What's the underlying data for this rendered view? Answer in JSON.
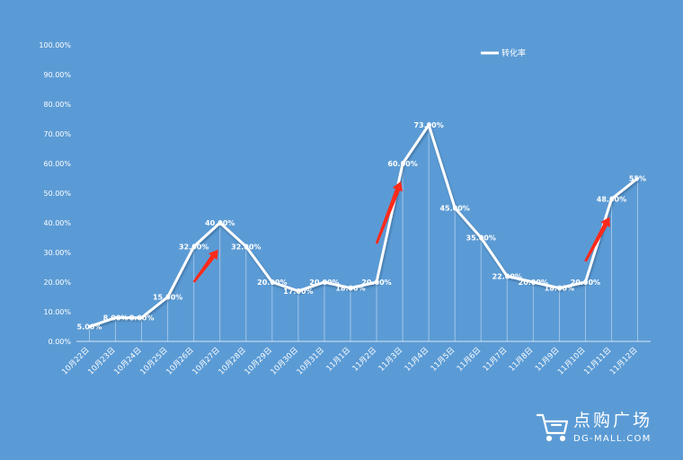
{
  "chart_data": {
    "type": "line",
    "categories": [
      "10月22日",
      "10月23日",
      "10月24日",
      "10月25日",
      "10月26日",
      "10月27日",
      "10月28日",
      "10月29日",
      "10月30日",
      "10月31日",
      "11月1日",
      "11月2日",
      "11月3日",
      "11月4日",
      "11月5日",
      "11月6日",
      "11月7日",
      "11月8日",
      "11月9日",
      "11月10日",
      "11月11日",
      "11月12日"
    ],
    "series": [
      {
        "name": "转化率",
        "values": [
          5,
          8,
          8,
          15,
          32,
          40,
          32,
          20,
          17,
          20,
          18,
          20,
          60,
          73,
          45,
          35,
          22,
          20,
          18,
          20,
          48,
          55
        ],
        "labels": [
          "5.00%",
          "8.00%",
          "8.00%",
          "15.00%",
          "32.00%",
          "40.00%",
          "32.00%",
          "20.00%",
          "17.00%",
          "20.00%",
          "18.00%",
          "20.00%",
          "60.00%",
          "73.00%",
          "45.00%",
          "35.00%",
          "22.00%",
          "20.00%",
          "18.00%",
          "20.00%",
          "48.00%",
          "55%"
        ]
      }
    ],
    "yticks": [
      "0.00%",
      "10.00%",
      "20.00%",
      "30.00%",
      "40.00%",
      "50.00%",
      "60.00%",
      "70.00%",
      "80.00%",
      "90.00%",
      "100.00%"
    ],
    "ylim": [
      0,
      100
    ],
    "grid": false,
    "legend_position": "top-right",
    "colors": {
      "background": "#5b9bd5",
      "line": "#ffffff",
      "arrow": "#ff2a1a"
    },
    "annotations": [
      {
        "type": "arrow",
        "from_category": "10月26日",
        "to_category": "10月27日",
        "from_value": 20,
        "to_value": 31
      },
      {
        "type": "arrow",
        "from_category": "11月2日",
        "to_category": "11月3日",
        "from_value": 33,
        "to_value": 54
      },
      {
        "type": "arrow",
        "from_category": "11月10日",
        "to_category": "11月11日",
        "from_value": 27,
        "to_value": 42
      }
    ]
  },
  "logo": {
    "name": "点购广场",
    "url_text": "DG-MALL.COM",
    "icon": "shopping-cart-icon"
  }
}
